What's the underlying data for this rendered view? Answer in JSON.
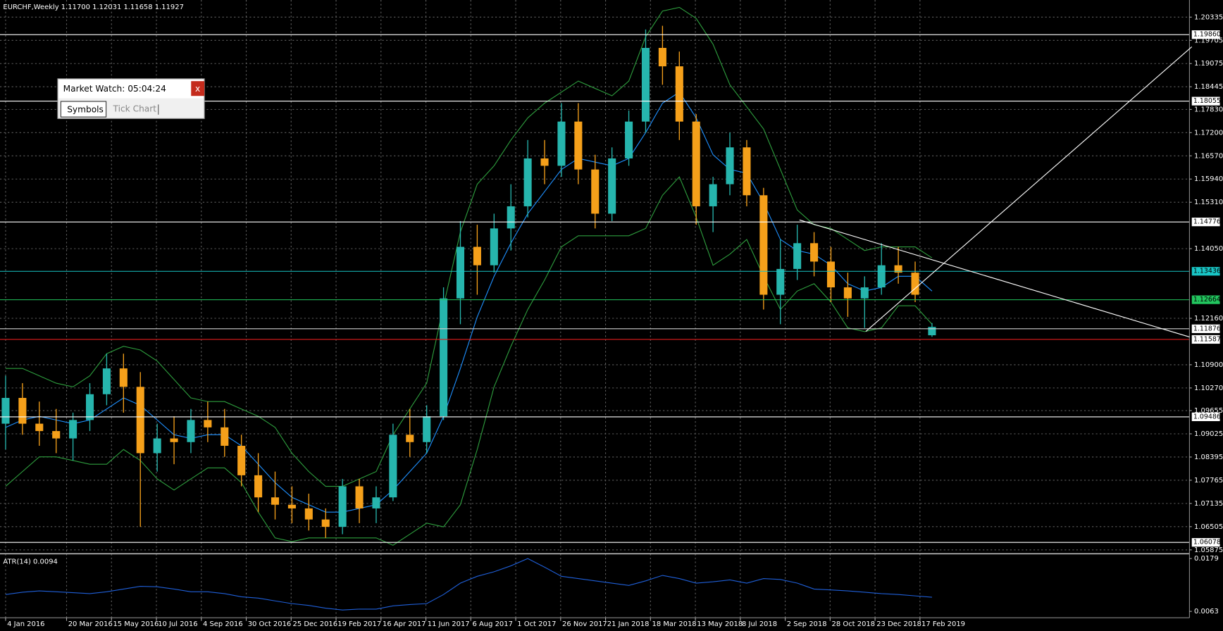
{
  "chart_data": [
    {
      "type": "candlestick",
      "title": "EURCHF,Weekly  1.11700 1.12031 1.11658 1.11927",
      "xlim": [
        "28 Dec 2015",
        "19 Jan 2020"
      ],
      "xticks": [
        "4 Jan 2016",
        "20 Mar 2016",
        "15 May 2016",
        "10 Jul 2016",
        "4 Sep 2016",
        "30 Oct 2016",
        "25 Dec 2016",
        "19 Feb 2017",
        "16 Apr 2017",
        "11 Jun 2017",
        "6 Aug 2017",
        "1 Oct 2017",
        "26 Nov 2017",
        "21 Jan 2018",
        "18 Mar 2018",
        "13 May 2018",
        "8 Jul 2018",
        "2 Sep 2018",
        "28 Oct 2018",
        "23 Dec 2018",
        "17 Feb 2019"
      ],
      "ylim": [
        1.0579,
        1.208
      ],
      "yticks": [
        1.20335,
        1.19705,
        1.19075,
        1.18445,
        {
          "value": 1.1783,
          "label": "1.17830"
        },
        {
          "value": 1.172,
          "label": "1.17200"
        },
        {
          "value": 1.1657,
          "label": "1.16570"
        },
        {
          "value": 1.1594,
          "label": "1.15940"
        },
        {
          "value": 1.1531,
          "label": "1.15310"
        },
        {
          "value": 1.1405,
          "label": "1.14050"
        },
        {
          "value": 1.1216,
          "label": "1.12160"
        },
        {
          "value": 1.109,
          "label": "1.10900"
        },
        {
          "value": 1.1027,
          "label": "1.10270"
        },
        1.09655,
        1.09025,
        1.08395,
        1.07765,
        1.07135,
        1.06505,
        1.05875
      ],
      "grid": true,
      "up_color": "#26b5ad",
      "down_color": "#f5a01a",
      "x": [
        "4 Jan 2016",
        "25 Jan 2016",
        "15 Feb 2016",
        "7 Mar 2016",
        "28 Mar 2016",
        "18 Apr 2016",
        "9 May 2016",
        "30 May 2016",
        "20 Jun 2016",
        "11 Jul 2016",
        "1 Aug 2016",
        "22 Aug 2016",
        "12 Sep 2016",
        "3 Oct 2016",
        "24 Oct 2016",
        "14 Nov 2016",
        "5 Dec 2016",
        "26 Dec 2016",
        "16 Jan 2017",
        "6 Feb 2017",
        "27 Feb 2017",
        "20 Mar 2017",
        "10 Apr 2017",
        "1 May 2017",
        "22 May 2017",
        "12 Jun 2017",
        "3 Jul 2017",
        "24 Jul 2017",
        "14 Aug 2017",
        "4 Sep 2017",
        "25 Sep 2017",
        "16 Oct 2017",
        "6 Nov 2017",
        "27 Nov 2017",
        "18 Dec 2017",
        "8 Jan 2018",
        "29 Jan 2018",
        "19 Feb 2018",
        "12 Mar 2018",
        "2 Apr 2018",
        "23 Apr 2018",
        "14 May 2018",
        "4 Jun 2018",
        "25 Jun 2018",
        "16 Jul 2018",
        "6 Aug 2018",
        "27 Aug 2018",
        "17 Sep 2018",
        "8 Oct 2018",
        "29 Oct 2018",
        "19 Nov 2018",
        "10 Dec 2018",
        "31 Dec 2018",
        "21 Jan 2019",
        "11 Feb 2019",
        "4 Mar 2019"
      ],
      "open": [
        1.093,
        1.1,
        1.093,
        1.091,
        1.089,
        1.094,
        1.101,
        1.108,
        1.103,
        1.085,
        1.089,
        1.088,
        1.094,
        1.092,
        1.087,
        1.079,
        1.073,
        1.071,
        1.07,
        1.067,
        1.065,
        1.076,
        1.07,
        1.073,
        1.09,
        1.088,
        1.095,
        1.127,
        1.141,
        1.136,
        1.146,
        1.152,
        1.165,
        1.163,
        1.175,
        1.162,
        1.15,
        1.165,
        1.175,
        1.195,
        1.19,
        1.175,
        1.152,
        1.158,
        1.168,
        1.155,
        1.128,
        1.135,
        1.142,
        1.137,
        1.13,
        1.127,
        1.13,
        1.136,
        1.134,
        1.117
      ],
      "high": [
        1.106,
        1.104,
        1.099,
        1.097,
        1.096,
        1.104,
        1.112,
        1.112,
        1.107,
        1.093,
        1.095,
        1.097,
        1.099,
        1.097,
        1.09,
        1.085,
        1.08,
        1.076,
        1.074,
        1.07,
        1.078,
        1.078,
        1.076,
        1.093,
        1.097,
        1.098,
        1.13,
        1.148,
        1.147,
        1.15,
        1.158,
        1.17,
        1.17,
        1.18,
        1.18,
        1.166,
        1.168,
        1.178,
        1.2,
        1.201,
        1.194,
        1.177,
        1.16,
        1.172,
        1.17,
        1.157,
        1.143,
        1.147,
        1.145,
        1.141,
        1.134,
        1.133,
        1.142,
        1.141,
        1.137,
        1.12031
      ],
      "low": [
        1.086,
        1.09,
        1.087,
        1.085,
        1.083,
        1.091,
        1.098,
        1.096,
        1.065,
        1.08,
        1.082,
        1.085,
        1.088,
        1.084,
        1.076,
        1.069,
        1.067,
        1.066,
        1.064,
        1.062,
        1.063,
        1.066,
        1.066,
        1.072,
        1.084,
        1.085,
        1.094,
        1.12,
        1.128,
        1.134,
        1.14,
        1.149,
        1.158,
        1.16,
        1.158,
        1.146,
        1.148,
        1.163,
        1.172,
        1.185,
        1.17,
        1.147,
        1.145,
        1.155,
        1.152,
        1.124,
        1.12,
        1.132,
        1.133,
        1.126,
        1.122,
        1.119,
        1.128,
        1.131,
        1.126,
        1.11658
      ],
      "close": [
        1.1,
        1.093,
        1.091,
        1.089,
        1.094,
        1.101,
        1.108,
        1.103,
        1.085,
        1.089,
        1.088,
        1.094,
        1.092,
        1.087,
        1.079,
        1.073,
        1.071,
        1.07,
        1.067,
        1.065,
        1.076,
        1.07,
        1.073,
        1.09,
        1.088,
        1.095,
        1.127,
        1.141,
        1.136,
        1.146,
        1.152,
        1.165,
        1.163,
        1.175,
        1.162,
        1.15,
        1.165,
        1.175,
        1.195,
        1.19,
        1.175,
        1.152,
        1.158,
        1.168,
        1.155,
        1.128,
        1.135,
        1.142,
        1.137,
        1.13,
        1.127,
        1.13,
        1.136,
        1.134,
        1.128,
        1.11927
      ],
      "lines": [
        {
          "color": "#1e90ff",
          "values": [
            1.092,
            1.094,
            1.095,
            1.094,
            1.093,
            1.094,
            1.097,
            1.1,
            1.098,
            1.094,
            1.09,
            1.089,
            1.09,
            1.09,
            1.087,
            1.082,
            1.077,
            1.073,
            1.071,
            1.069,
            1.069,
            1.07,
            1.071,
            1.075,
            1.08,
            1.085,
            1.095,
            1.108,
            1.122,
            1.133,
            1.142,
            1.15,
            1.156,
            1.162,
            1.165,
            1.164,
            1.163,
            1.165,
            1.172,
            1.18,
            1.183,
            1.176,
            1.166,
            1.162,
            1.161,
            1.153,
            1.143,
            1.14,
            1.139,
            1.136,
            1.131,
            1.129,
            1.13,
            1.133,
            1.133,
            1.129
          ]
        },
        {
          "color": "#2e9e3e",
          "values": [
            1.108,
            1.108,
            1.106,
            1.104,
            1.103,
            1.106,
            1.112,
            1.114,
            1.113,
            1.11,
            1.105,
            1.1,
            1.099,
            1.099,
            1.097,
            1.095,
            1.092,
            1.085,
            1.08,
            1.076,
            1.076,
            1.078,
            1.08,
            1.09,
            1.097,
            1.104,
            1.125,
            1.145,
            1.158,
            1.163,
            1.17,
            1.176,
            1.18,
            1.183,
            1.186,
            1.184,
            1.182,
            1.186,
            1.198,
            1.205,
            1.206,
            1.203,
            1.196,
            1.185,
            1.179,
            1.173,
            1.162,
            1.151,
            1.147,
            1.146,
            1.143,
            1.14,
            1.141,
            1.141,
            1.141,
            1.138
          ]
        },
        {
          "color": "#2e9e3e",
          "values": [
            1.076,
            1.08,
            1.084,
            1.084,
            1.083,
            1.082,
            1.082,
            1.086,
            1.083,
            1.078,
            1.075,
            1.078,
            1.081,
            1.081,
            1.077,
            1.069,
            1.062,
            1.061,
            1.062,
            1.062,
            1.062,
            1.062,
            1.062,
            1.06,
            1.063,
            1.066,
            1.065,
            1.071,
            1.086,
            1.103,
            1.114,
            1.124,
            1.132,
            1.141,
            1.144,
            1.144,
            1.144,
            1.144,
            1.146,
            1.155,
            1.16,
            1.149,
            1.136,
            1.139,
            1.143,
            1.133,
            1.124,
            1.129,
            1.131,
            1.126,
            1.119,
            1.118,
            1.119,
            1.125,
            1.125,
            1.12
          ]
        }
      ],
      "levels": [
        {
          "value": 1.1986,
          "label": "1.19860",
          "color": "#ffffff"
        },
        {
          "value": 1.18055,
          "label": "1.18055",
          "color": "#ffffff"
        },
        {
          "value": 1.14776,
          "label": "1.14776",
          "color": "#ffffff"
        },
        {
          "value": 1.13436,
          "label": "1.13436",
          "color": "#19c6c6"
        },
        {
          "value": 1.12664,
          "label": "1.12664",
          "color": "#22c55e"
        },
        {
          "value": 1.11876,
          "label": "1.11876",
          "color": "#d0d0d0"
        },
        {
          "value": 1.11587,
          "label": "1.11587",
          "color": "#e11d1d"
        },
        {
          "value": 1.09486,
          "label": "1.09486",
          "color": "#ffffff"
        },
        {
          "value": 1.06078,
          "label": "1.06078",
          "color": "#ffffff"
        }
      ]
    },
    {
      "type": "line",
      "title": "ATR(14) 0.0094",
      "color": "#1f5fd8",
      "ylim": [
        0.0049,
        0.0186
      ],
      "yticks": [
        0.0179,
        0.0063
      ],
      "x": [
        "4 Jan 2016",
        "25 Jan 2016",
        "15 Feb 2016",
        "7 Mar 2016",
        "28 Mar 2016",
        "18 Apr 2016",
        "9 May 2016",
        "30 May 2016",
        "20 Jun 2016",
        "11 Jul 2016",
        "1 Aug 2016",
        "22 Aug 2016",
        "12 Sep 2016",
        "3 Oct 2016",
        "24 Oct 2016",
        "14 Nov 2016",
        "5 Dec 2016",
        "26 Dec 2016",
        "16 Jan 2017",
        "6 Feb 2017",
        "27 Feb 2017",
        "20 Mar 2017",
        "10 Apr 2017",
        "1 May 2017",
        "22 May 2017",
        "12 Jun 2017",
        "3 Jul 2017",
        "24 Jul 2017",
        "14 Aug 2017",
        "4 Sep 2017",
        "25 Sep 2017",
        "16 Oct 2017",
        "6 Nov 2017",
        "27 Nov 2017",
        "18 Dec 2017",
        "8 Jan 2018",
        "29 Jan 2018",
        "19 Feb 2018",
        "12 Mar 2018",
        "2 Apr 2018",
        "23 Apr 2018",
        "14 May 2018",
        "4 Jun 2018",
        "25 Jun 2018",
        "16 Jul 2018",
        "6 Aug 2018",
        "27 Aug 2018",
        "17 Sep 2018",
        "8 Oct 2018",
        "29 Oct 2018",
        "19 Nov 2018",
        "10 Dec 2018",
        "31 Dec 2018",
        "21 Jan 2019",
        "11 Feb 2019",
        "4 Mar 2019"
      ],
      "values": [
        0.01,
        0.0105,
        0.0108,
        0.0106,
        0.0104,
        0.0102,
        0.0106,
        0.0112,
        0.0118,
        0.0117,
        0.0112,
        0.0106,
        0.0106,
        0.0102,
        0.0095,
        0.0092,
        0.0086,
        0.008,
        0.0076,
        0.007,
        0.0066,
        0.0068,
        0.0068,
        0.0075,
        0.0078,
        0.008,
        0.01,
        0.0125,
        0.014,
        0.015,
        0.0163,
        0.0179,
        0.016,
        0.014,
        0.0135,
        0.013,
        0.0125,
        0.012,
        0.013,
        0.0142,
        0.0135,
        0.0125,
        0.0128,
        0.0132,
        0.0125,
        0.0135,
        0.0133,
        0.0125,
        0.0112,
        0.011,
        0.0108,
        0.0105,
        0.0102,
        0.01,
        0.0097,
        0.0094
      ]
    }
  ],
  "market_watch": {
    "title": "Market Watch: 05:04:24",
    "close": "x",
    "tabs": [
      "Symbols",
      "Tick Chart"
    ]
  }
}
